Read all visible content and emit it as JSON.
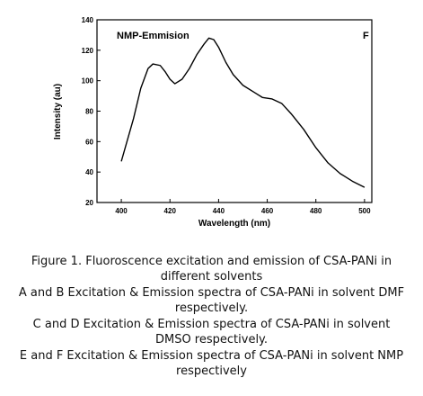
{
  "chart_data": {
    "type": "line",
    "subtitle": "NMP-Emmision",
    "title": "F",
    "xlabel": "Wavelength (nm)",
    "ylabel": "Intensity (au)",
    "x": [
      400,
      405,
      408,
      411,
      413,
      416,
      418,
      420,
      422,
      425,
      428,
      431,
      434,
      436,
      438,
      440,
      443,
      446,
      450,
      455,
      458,
      462,
      466,
      470,
      475,
      480,
      485,
      490,
      495,
      500
    ],
    "series": [
      {
        "color": "#000000",
        "values": [
          47,
          75,
          95,
          108,
          111,
          110,
          106,
          101,
          98,
          101,
          108,
          117,
          124,
          128,
          127,
          122,
          112,
          104,
          97,
          92,
          89,
          88,
          85,
          78,
          68,
          56,
          46,
          39,
          34,
          30
        ]
      }
    ],
    "xlim": [
      390,
      503
    ],
    "xticks": [
      400,
      420,
      440,
      460,
      480,
      500
    ],
    "ylim": [
      20,
      140
    ],
    "yticks": [
      20,
      40,
      60,
      80,
      100,
      120,
      140
    ]
  },
  "caption": [
    "Figure 1. Fluoroscence excitation and emission of CSA-PANi in different solvents",
    "A and B Excitation & Emission spectra of CSA-PANi in solvent DMF respectively.",
    "C and D Excitation & Emission spectra of CSA-PANi in solvent DMSO respectively.",
    "E and F Excitation & Emission spectra of CSA-PANi in solvent NMP respectively"
  ]
}
